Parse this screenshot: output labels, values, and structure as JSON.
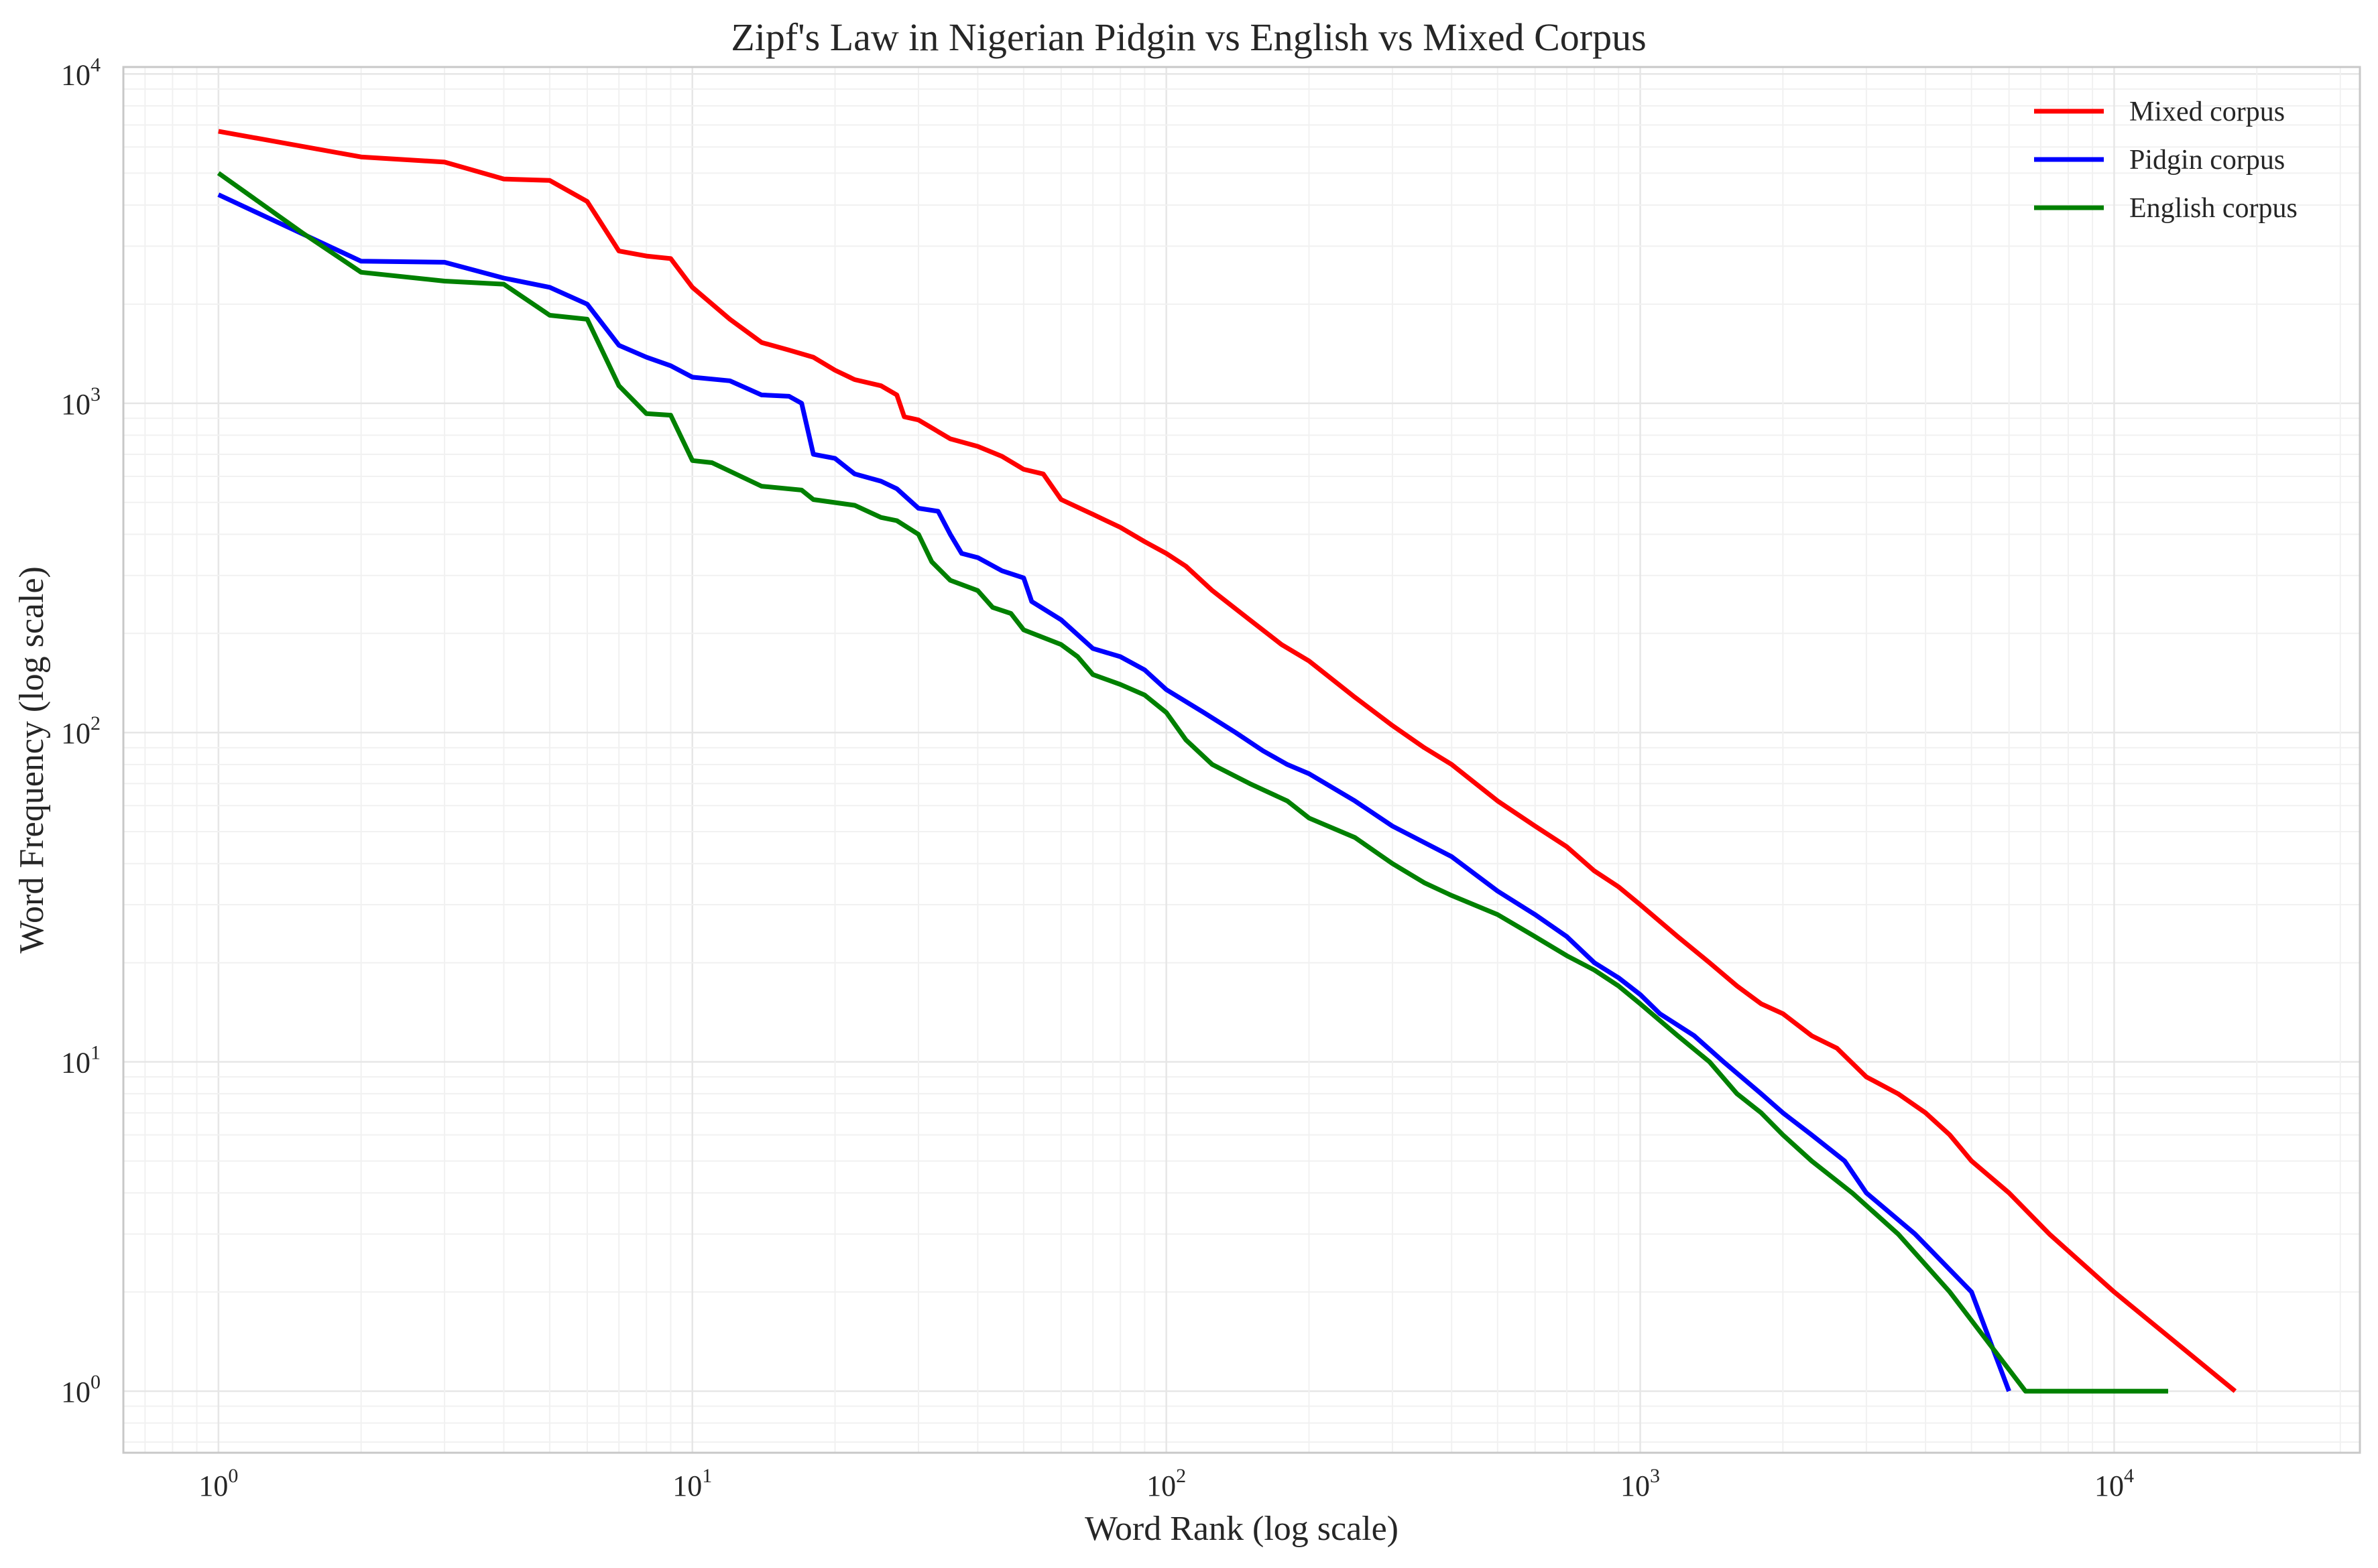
{
  "chart_data": {
    "type": "line",
    "title": "Zipf's Law in Nigerian Pidgin vs English vs Mixed Corpus",
    "xlabel": "Word Rank (log scale)",
    "ylabel": "Word Frequency (log scale)",
    "x_scale": "log",
    "y_scale": "log",
    "xlim": [
      0.63,
      33000
    ],
    "ylim": [
      0.65,
      10500
    ],
    "x_ticks": [
      {
        "value": 1,
        "base": "10",
        "exp": "0"
      },
      {
        "value": 10,
        "base": "10",
        "exp": "1"
      },
      {
        "value": 100,
        "base": "10",
        "exp": "2"
      },
      {
        "value": 1000,
        "base": "10",
        "exp": "3"
      },
      {
        "value": 10000,
        "base": "10",
        "exp": "4"
      }
    ],
    "y_ticks": [
      {
        "value": 1,
        "base": "10",
        "exp": "0"
      },
      {
        "value": 10,
        "base": "10",
        "exp": "1"
      },
      {
        "value": 100,
        "base": "10",
        "exp": "2"
      },
      {
        "value": 1000,
        "base": "10",
        "exp": "3"
      },
      {
        "value": 10000,
        "base": "10",
        "exp": "4"
      }
    ],
    "grid": true,
    "legend_position": "top-right",
    "series": [
      {
        "name": "Mixed corpus",
        "color": "#ff0000",
        "points": [
          [
            1,
            6700
          ],
          [
            2,
            5600
          ],
          [
            3,
            5400
          ],
          [
            4,
            4800
          ],
          [
            5,
            4750
          ],
          [
            6,
            4100
          ],
          [
            7,
            2900
          ],
          [
            8,
            2800
          ],
          [
            9,
            2750
          ],
          [
            10,
            2250
          ],
          [
            12,
            1800
          ],
          [
            14,
            1530
          ],
          [
            16,
            1450
          ],
          [
            18,
            1380
          ],
          [
            20,
            1260
          ],
          [
            22,
            1180
          ],
          [
            25,
            1130
          ],
          [
            27,
            1060
          ],
          [
            28,
            910
          ],
          [
            30,
            890
          ],
          [
            35,
            780
          ],
          [
            40,
            740
          ],
          [
            45,
            690
          ],
          [
            50,
            630
          ],
          [
            55,
            610
          ],
          [
            60,
            510
          ],
          [
            70,
            460
          ],
          [
            80,
            420
          ],
          [
            90,
            380
          ],
          [
            100,
            350
          ],
          [
            110,
            320
          ],
          [
            125,
            270
          ],
          [
            150,
            220
          ],
          [
            175,
            185
          ],
          [
            200,
            165
          ],
          [
            250,
            128
          ],
          [
            300,
            105
          ],
          [
            350,
            90
          ],
          [
            400,
            80
          ],
          [
            500,
            62
          ],
          [
            600,
            52
          ],
          [
            700,
            45
          ],
          [
            800,
            38
          ],
          [
            900,
            34
          ],
          [
            1000,
            30
          ],
          [
            1200,
            24
          ],
          [
            1400,
            20
          ],
          [
            1600,
            17
          ],
          [
            1800,
            15
          ],
          [
            2000,
            14
          ],
          [
            2300,
            12
          ],
          [
            2600,
            11
          ],
          [
            3000,
            9
          ],
          [
            3500,
            8
          ],
          [
            4000,
            7
          ],
          [
            4500,
            6
          ],
          [
            5000,
            5
          ],
          [
            6000,
            4
          ],
          [
            7300,
            3
          ],
          [
            10000,
            2
          ],
          [
            18000,
            1
          ]
        ]
      },
      {
        "name": "Pidgin corpus",
        "color": "#0000ff",
        "points": [
          [
            1,
            4300
          ],
          [
            2,
            2700
          ],
          [
            3,
            2680
          ],
          [
            4,
            2400
          ],
          [
            5,
            2250
          ],
          [
            6,
            2000
          ],
          [
            7,
            1500
          ],
          [
            8,
            1380
          ],
          [
            9,
            1300
          ],
          [
            10,
            1200
          ],
          [
            12,
            1170
          ],
          [
            14,
            1060
          ],
          [
            16,
            1050
          ],
          [
            17,
            1000
          ],
          [
            18,
            700
          ],
          [
            20,
            680
          ],
          [
            22,
            610
          ],
          [
            25,
            580
          ],
          [
            27,
            550
          ],
          [
            30,
            480
          ],
          [
            33,
            470
          ],
          [
            35,
            400
          ],
          [
            37,
            350
          ],
          [
            40,
            340
          ],
          [
            45,
            310
          ],
          [
            50,
            295
          ],
          [
            52,
            250
          ],
          [
            60,
            220
          ],
          [
            70,
            180
          ],
          [
            80,
            170
          ],
          [
            90,
            155
          ],
          [
            100,
            135
          ],
          [
            120,
            115
          ],
          [
            140,
            100
          ],
          [
            160,
            88
          ],
          [
            180,
            80
          ],
          [
            200,
            75
          ],
          [
            250,
            62
          ],
          [
            300,
            52
          ],
          [
            400,
            42
          ],
          [
            500,
            33
          ],
          [
            600,
            28
          ],
          [
            700,
            24
          ],
          [
            800,
            20
          ],
          [
            900,
            18
          ],
          [
            1000,
            16
          ],
          [
            1100,
            14
          ],
          [
            1300,
            12
          ],
          [
            1500,
            10
          ],
          [
            1800,
            8
          ],
          [
            2000,
            7
          ],
          [
            2300,
            6
          ],
          [
            2700,
            5
          ],
          [
            3000,
            4
          ],
          [
            3800,
            3
          ],
          [
            5000,
            2
          ],
          [
            6000,
            1
          ]
        ]
      },
      {
        "name": "English corpus",
        "color": "#008000",
        "points": [
          [
            1,
            5000
          ],
          [
            1.5,
            3300
          ],
          [
            2,
            2500
          ],
          [
            3,
            2350
          ],
          [
            4,
            2300
          ],
          [
            5,
            1850
          ],
          [
            6,
            1800
          ],
          [
            7,
            1130
          ],
          [
            8,
            930
          ],
          [
            9,
            920
          ],
          [
            10,
            670
          ],
          [
            11,
            660
          ],
          [
            14,
            560
          ],
          [
            17,
            545
          ],
          [
            18,
            510
          ],
          [
            22,
            490
          ],
          [
            25,
            450
          ],
          [
            27,
            440
          ],
          [
            30,
            400
          ],
          [
            32,
            330
          ],
          [
            35,
            290
          ],
          [
            40,
            270
          ],
          [
            43,
            240
          ],
          [
            47,
            230
          ],
          [
            50,
            205
          ],
          [
            60,
            185
          ],
          [
            65,
            170
          ],
          [
            70,
            150
          ],
          [
            80,
            140
          ],
          [
            90,
            130
          ],
          [
            100,
            115
          ],
          [
            110,
            95
          ],
          [
            125,
            80
          ],
          [
            150,
            70
          ],
          [
            180,
            62
          ],
          [
            200,
            55
          ],
          [
            250,
            48
          ],
          [
            300,
            40
          ],
          [
            350,
            35
          ],
          [
            400,
            32
          ],
          [
            500,
            28
          ],
          [
            600,
            24
          ],
          [
            700,
            21
          ],
          [
            800,
            19
          ],
          [
            900,
            17
          ],
          [
            1000,
            15
          ],
          [
            1200,
            12
          ],
          [
            1400,
            10
          ],
          [
            1600,
            8
          ],
          [
            1800,
            7
          ],
          [
            2000,
            6
          ],
          [
            2300,
            5
          ],
          [
            2800,
            4
          ],
          [
            3500,
            3
          ],
          [
            4500,
            2
          ],
          [
            6500,
            1
          ],
          [
            13000,
            1
          ]
        ]
      }
    ]
  }
}
